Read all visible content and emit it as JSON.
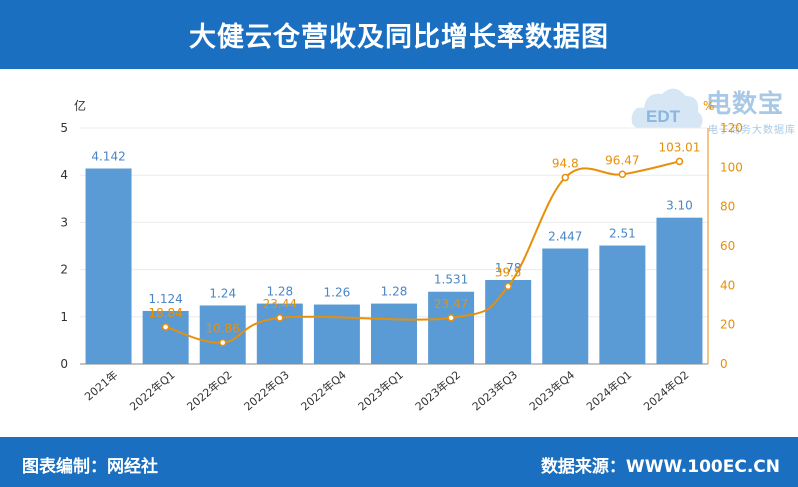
{
  "header": {
    "title": "大健云仓营收及同比增长率数据图"
  },
  "footer": {
    "editor": "图表编制：网经社",
    "source": "数据来源：WWW.100EC.CN"
  },
  "watermark": {
    "text_main": "电数宝",
    "text_sub": "电子商务大数据库",
    "badge": "EDT"
  },
  "colors": {
    "header_bg": "#1a6fc0",
    "bar": "#5b9bd5",
    "line": "#e6900a",
    "bar_label": "#4a86c5"
  },
  "chart_data": {
    "type": "bar",
    "categories": [
      "2021年",
      "2022年Q1",
      "2022年Q2",
      "2022年Q3",
      "2022年Q4",
      "2023年Q1",
      "2023年Q2",
      "2023年Q3",
      "2023年Q4",
      "2024年Q1",
      "2024年Q2"
    ],
    "series": [
      {
        "axis": "left",
        "type": "bar",
        "values": [
          4.142,
          1.124,
          1.24,
          1.28,
          1.26,
          1.28,
          1.531,
          1.78,
          2.447,
          2.51,
          3.1
        ],
        "labels": [
          "4.142",
          "1.124",
          "1.24",
          "1.28",
          "1.26",
          "1.28",
          "1.531",
          "1.78",
          "2.447",
          "2.51",
          "3.10"
        ]
      },
      {
        "axis": "right",
        "type": "line",
        "values": [
          null,
          18.84,
          10.86,
          23.44,
          null,
          null,
          23.47,
          39.5,
          94.8,
          96.47,
          103.01
        ],
        "labels": [
          null,
          "18.84",
          "10.86",
          "23.44",
          null,
          null,
          "23.47",
          "39.5",
          "94.8",
          "96.47",
          "103.01"
        ]
      }
    ],
    "y_left": {
      "unit": "亿",
      "min": 0,
      "max": 5,
      "ticks": [
        0,
        1,
        2,
        3,
        4,
        5
      ]
    },
    "y_right": {
      "unit": "%",
      "min": 0,
      "max": 120,
      "ticks": [
        0,
        20,
        40,
        60,
        80,
        100,
        120
      ]
    },
    "grid": true
  }
}
